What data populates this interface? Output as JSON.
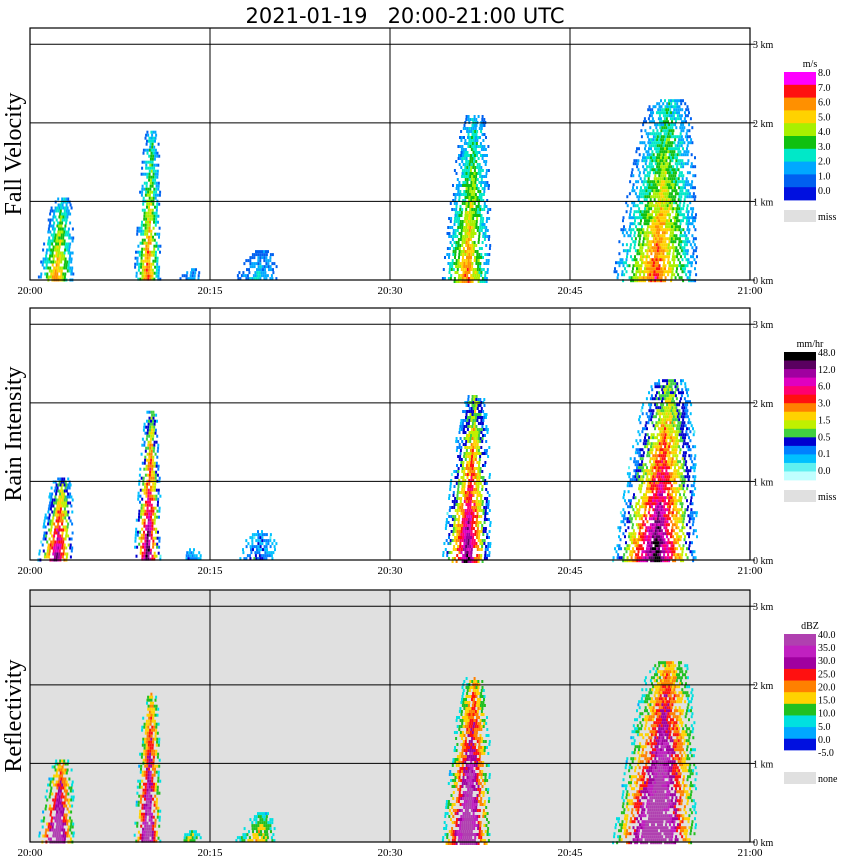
{
  "title": "2021-01-19   20:00-21:00 UTC",
  "x_ticks": [
    "20:00",
    "20:15",
    "20:30",
    "20:45",
    "21:00"
  ],
  "y_ticks": [
    "0 km",
    "1 km",
    "2 km",
    "3 km"
  ],
  "chart_data": [
    {
      "type": "heatmap",
      "ylabel": "Fall Velocity",
      "background": "#ffffff",
      "colorbar": {
        "unit": "m/s",
        "labels": [
          "8.0",
          "7.0",
          "6.0",
          "5.0",
          "4.0",
          "3.0",
          "2.0",
          "1.0",
          "0.0"
        ],
        "colors": [
          "#ff00ff",
          "#ff1010",
          "#ff9000",
          "#ffd200",
          "#a8f000",
          "#10c010",
          "#00e8c8",
          "#00a8ff",
          "#0060f0",
          "#0010e0"
        ],
        "missing_label": "miss"
      },
      "echoes": [
        {
          "t0": 0.6,
          "t1": 3.6,
          "z0": 0.0,
          "z1": 1.05,
          "peak": 0.6
        },
        {
          "t0": 8.6,
          "t1": 10.8,
          "z0": 0.0,
          "z1": 1.9,
          "peak": 0.65
        },
        {
          "t0": 12.3,
          "t1": 14.2,
          "z0": 0.0,
          "z1": 0.15,
          "peak": 0.2
        },
        {
          "t0": 17.0,
          "t1": 20.5,
          "z0": 0.0,
          "z1": 0.38,
          "peak": 0.2
        },
        {
          "t0": 34.3,
          "t1": 38.3,
          "z0": 0.0,
          "z1": 2.1,
          "peak": 0.6
        },
        {
          "t0": 48.5,
          "t1": 55.5,
          "z0": 0.0,
          "z1": 2.3,
          "peak": 0.65
        }
      ]
    },
    {
      "type": "heatmap",
      "ylabel": "Rain Intensity",
      "background": "#ffffff",
      "colorbar": {
        "unit": "mm/hr",
        "labels": [
          "48.0",
          "12.0",
          "6.0",
          "3.0",
          "1.5",
          "0.5",
          "0.1",
          "0.0"
        ],
        "colors": [
          "#000000",
          "#5a0060",
          "#a000a0",
          "#e000c0",
          "#ff0070",
          "#ff1010",
          "#ff8000",
          "#ffd200",
          "#c0f000",
          "#40d040",
          "#0000d0",
          "#0080ff",
          "#00c0ff",
          "#60f0f0",
          "#c0ffff"
        ],
        "missing_label": "miss"
      },
      "echoes": [
        {
          "t0": 0.6,
          "t1": 3.6,
          "z0": 0.0,
          "z1": 1.05,
          "peak": 0.7
        },
        {
          "t0": 8.6,
          "t1": 10.8,
          "z0": 0.0,
          "z1": 1.9,
          "peak": 0.75
        },
        {
          "t0": 12.3,
          "t1": 14.2,
          "z0": 0.0,
          "z1": 0.15,
          "peak": 0.2
        },
        {
          "t0": 17.0,
          "t1": 20.5,
          "z0": 0.0,
          "z1": 0.38,
          "peak": 0.2
        },
        {
          "t0": 34.3,
          "t1": 38.3,
          "z0": 0.0,
          "z1": 2.1,
          "peak": 0.7
        },
        {
          "t0": 48.5,
          "t1": 55.5,
          "z0": 0.0,
          "z1": 2.3,
          "peak": 0.75
        }
      ]
    },
    {
      "type": "heatmap",
      "ylabel": "Reflectivity",
      "background": "#e0e0e0",
      "colorbar": {
        "unit": "dBZ",
        "labels": [
          "40.0",
          "35.0",
          "30.0",
          "25.0",
          "20.0",
          "15.0",
          "10.0",
          "5.0",
          "0.0",
          "-5.0"
        ],
        "colors": [
          "#b040b0",
          "#c020c0",
          "#a000a0",
          "#ff1010",
          "#ff8000",
          "#ffd200",
          "#20c020",
          "#00e0e0",
          "#00a8ff",
          "#0010e0",
          "#ffffff"
        ],
        "missing_label": "none"
      },
      "echoes": [
        {
          "t0": 0.6,
          "t1": 3.6,
          "z0": 0.0,
          "z1": 1.05,
          "peak": 0.8
        },
        {
          "t0": 8.6,
          "t1": 10.8,
          "z0": 0.0,
          "z1": 1.9,
          "peak": 0.75
        },
        {
          "t0": 12.3,
          "t1": 14.2,
          "z0": 0.0,
          "z1": 0.15,
          "peak": 0.3
        },
        {
          "t0": 17.0,
          "t1": 20.5,
          "z0": 0.0,
          "z1": 0.38,
          "peak": 0.3
        },
        {
          "t0": 34.3,
          "t1": 38.3,
          "z0": 0.0,
          "z1": 2.1,
          "peak": 0.8
        },
        {
          "t0": 48.5,
          "t1": 55.5,
          "z0": 0.0,
          "z1": 2.3,
          "peak": 0.85
        }
      ]
    }
  ],
  "time_range_min": [
    0,
    60
  ],
  "height_range_km": [
    0,
    3.2
  ]
}
